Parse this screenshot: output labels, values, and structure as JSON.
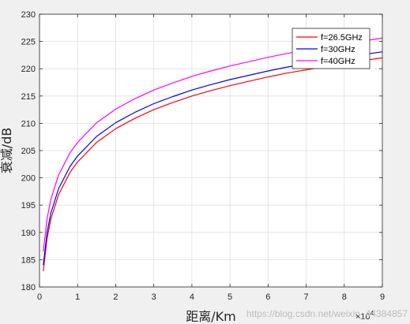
{
  "chart_data": {
    "type": "line",
    "xlabel": "距离/Km",
    "ylabel": "衰减/dB",
    "x_exponent_label": "×10",
    "x_exponent_power": "4",
    "xlim": [
      0,
      90000
    ],
    "ylim": [
      180,
      230
    ],
    "x_ticks": [
      0,
      10000,
      20000,
      30000,
      40000,
      50000,
      60000,
      70000,
      80000,
      90000
    ],
    "x_tick_labels": [
      "0",
      "1",
      "2",
      "3",
      "4",
      "5",
      "6",
      "7",
      "8",
      "9"
    ],
    "y_ticks": [
      180,
      185,
      190,
      195,
      200,
      205,
      210,
      215,
      220,
      225,
      230
    ],
    "y_tick_labels": [
      "180",
      "185",
      "190",
      "195",
      "200",
      "205",
      "210",
      "215",
      "220",
      "225",
      "230"
    ],
    "grid": true,
    "legend_position": "top-right",
    "x": [
      1000,
      2000,
      3000,
      5000,
      8000,
      10000,
      15000,
      20000,
      25000,
      30000,
      35000,
      40000,
      45000,
      50000,
      55000,
      60000,
      65000,
      70000,
      75000,
      80000,
      85000,
      90000
    ],
    "series": [
      {
        "name": "f=26.5GHz",
        "color": "#ff0000",
        "values": [
          182.9,
          188.9,
          192.5,
          196.9,
          201.0,
          202.9,
          206.5,
          209.0,
          210.9,
          212.5,
          213.8,
          215.0,
          216.0,
          216.9,
          217.7,
          218.5,
          219.2,
          219.8,
          220.4,
          221.0,
          221.5,
          222.0
        ]
      },
      {
        "name": "f=30GHz",
        "color": "#0000ff",
        "values": [
          184.0,
          190.0,
          193.6,
          198.0,
          202.1,
          204.0,
          207.6,
          210.1,
          212.0,
          213.6,
          214.9,
          216.1,
          217.1,
          218.0,
          218.8,
          219.6,
          220.3,
          220.9,
          221.5,
          222.1,
          222.6,
          223.1
        ]
      },
      {
        "name": "f=40GHz",
        "color": "#ff00ff",
        "values": [
          186.5,
          192.5,
          196.1,
          200.5,
          204.6,
          206.5,
          210.1,
          212.6,
          214.5,
          216.1,
          217.4,
          218.6,
          219.6,
          220.5,
          221.3,
          222.1,
          222.8,
          223.4,
          224.0,
          224.6,
          225.1,
          225.6
        ]
      }
    ]
  },
  "watermark": "https://blog.csdn.net/weixin_44384857"
}
